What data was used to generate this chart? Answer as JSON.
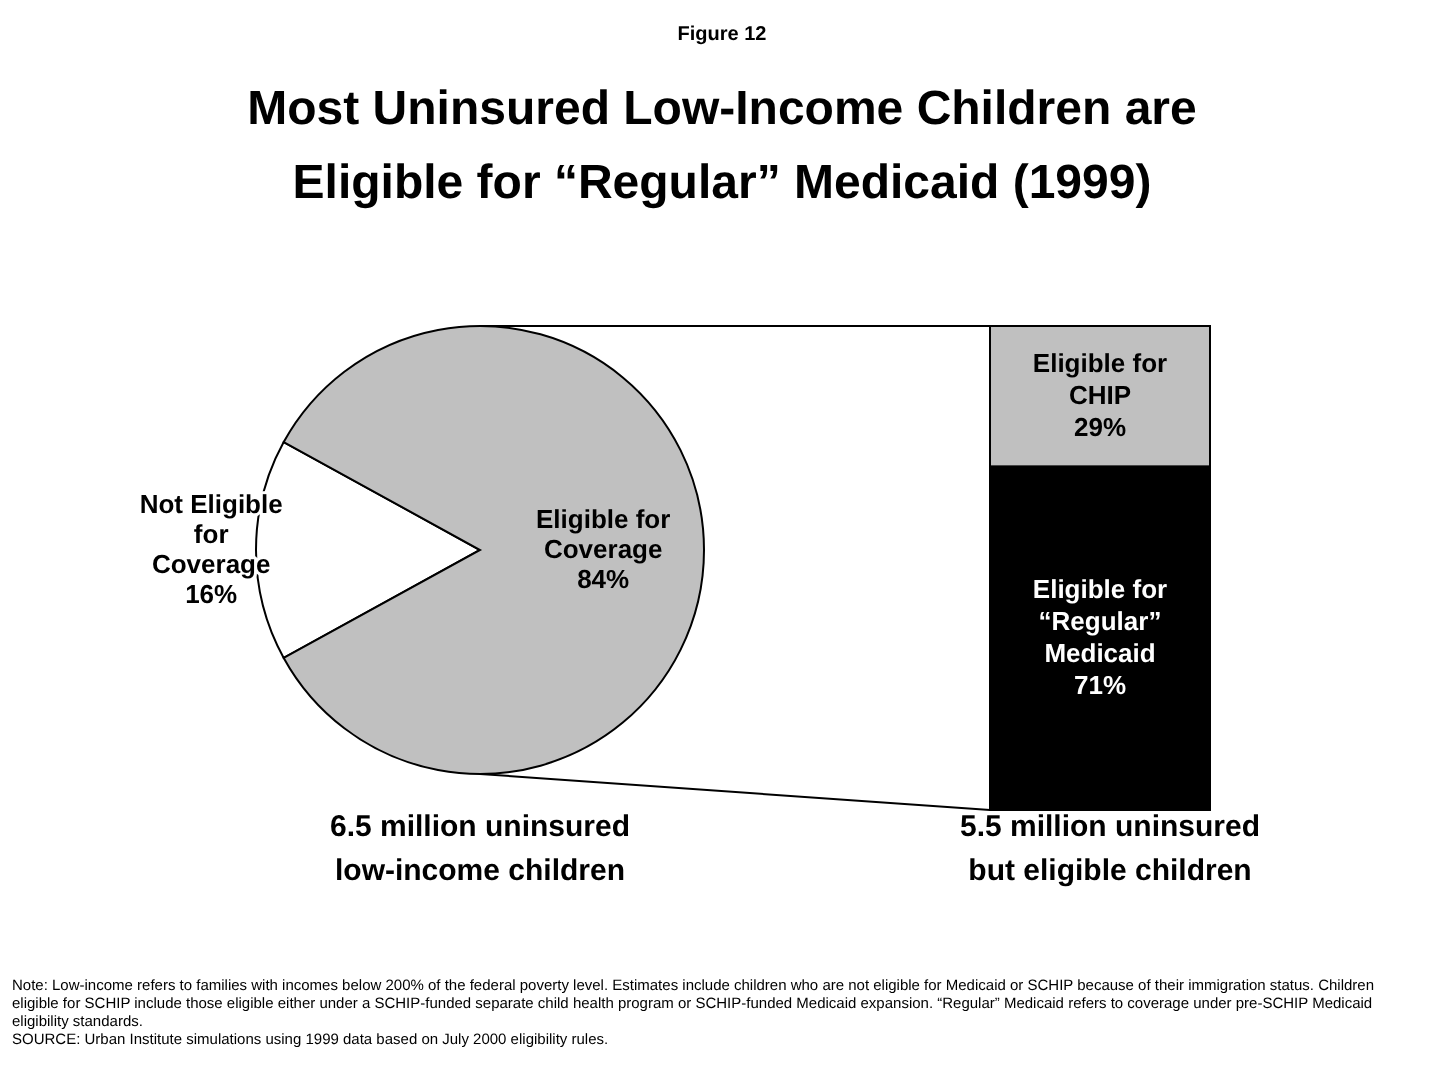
{
  "chart_data": [
    {
      "type": "pie",
      "title": "Most Uninsured Low-Income Children are Eligible for “Regular” Medicaid (1999)",
      "xlabel": "6.5 million uninsured low-income children",
      "categories": [
        "Not Eligible for Coverage",
        "Eligible for Coverage"
      ],
      "values": [
        16,
        84
      ],
      "value_labels": [
        "16%",
        "84%"
      ],
      "colors": [
        "#ffffff",
        "#c0c0c0"
      ],
      "annotations": [
        "Figure 12",
        "Note: Low-income refers to families with incomes below 200% of the federal poverty level.  Estimates include children who are not eligible for Medicaid or SCHIP because of their immigration status.  Children eligible for SCHIP include those eligible either under a SCHIP-funded separate child health program or SCHIP-funded Medicaid expansion.  “Regular” Medicaid refers to coverage under pre-SCHIP Medicaid eligibility standards.",
        "SOURCE: Urban Institute simulations using 1999 data based on July 2000 eligibility rules."
      ]
    },
    {
      "type": "bar",
      "stacked": true,
      "xlabel": "5.5 million uninsured but eligible children",
      "categories": [
        null
      ],
      "series": [
        {
          "name": "Eligible for “Regular” Medicaid",
          "color": "#000000",
          "values": [
            71
          ],
          "value_labels": [
            "71%"
          ]
        },
        {
          "name": "Eligible for CHIP",
          "color": "#c0c0c0",
          "values": [
            29
          ],
          "value_labels": [
            "29%"
          ]
        }
      ]
    }
  ]
}
